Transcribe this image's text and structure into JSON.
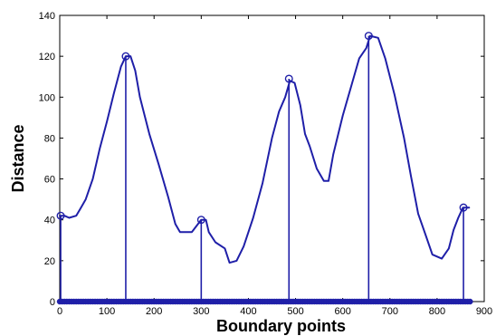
{
  "chart_data": {
    "type": "line",
    "title": "",
    "xlabel": "Boundary points",
    "ylabel": "Distance",
    "xlim": [
      0,
      900
    ],
    "ylim": [
      0,
      140
    ],
    "x_ticks": [
      "0",
      "100",
      "200",
      "300",
      "400",
      "500",
      "600",
      "700",
      "800",
      "900"
    ],
    "y_ticks": [
      "0",
      "20",
      "40",
      "60",
      "80",
      "100",
      "120",
      "140"
    ],
    "grid": false,
    "legend": "none",
    "colors": {
      "line": "#1f1fa8",
      "axes": "#000000",
      "background": "#ffffff"
    },
    "series": [
      {
        "points": [
          [
            0,
            42
          ],
          [
            10,
            42
          ],
          [
            20,
            41
          ],
          [
            35,
            42
          ],
          [
            45,
            46
          ],
          [
            55,
            50
          ],
          [
            70,
            60
          ],
          [
            85,
            75
          ],
          [
            100,
            88
          ],
          [
            115,
            102
          ],
          [
            130,
            115
          ],
          [
            140,
            120
          ],
          [
            150,
            120
          ],
          [
            160,
            113
          ],
          [
            170,
            100
          ],
          [
            190,
            82
          ],
          [
            210,
            67
          ],
          [
            230,
            51
          ],
          [
            245,
            38
          ],
          [
            255,
            34
          ],
          [
            270,
            34
          ],
          [
            280,
            34
          ],
          [
            290,
            37
          ],
          [
            300,
            40
          ],
          [
            310,
            40
          ],
          [
            316,
            34
          ],
          [
            330,
            29
          ],
          [
            350,
            26
          ],
          [
            360,
            19
          ],
          [
            375,
            20
          ],
          [
            390,
            27
          ],
          [
            410,
            41
          ],
          [
            430,
            58
          ],
          [
            450,
            80
          ],
          [
            465,
            93
          ],
          [
            478,
            100
          ],
          [
            488,
            108
          ],
          [
            498,
            107
          ],
          [
            510,
            96
          ],
          [
            520,
            82
          ],
          [
            530,
            76
          ],
          [
            545,
            65
          ],
          [
            560,
            59
          ],
          [
            570,
            59
          ],
          [
            580,
            72
          ],
          [
            600,
            91
          ],
          [
            620,
            107
          ],
          [
            635,
            119
          ],
          [
            650,
            124
          ],
          [
            658,
            130
          ],
          [
            675,
            129
          ],
          [
            690,
            119
          ],
          [
            710,
            101
          ],
          [
            730,
            80
          ],
          [
            745,
            61
          ],
          [
            760,
            43
          ],
          [
            775,
            33
          ],
          [
            790,
            23
          ],
          [
            810,
            21
          ],
          [
            825,
            26
          ],
          [
            835,
            35
          ],
          [
            845,
            41
          ],
          [
            855,
            46
          ],
          [
            868,
            46
          ]
        ]
      }
    ],
    "peaks": [
      {
        "x": 2,
        "y": 42
      },
      {
        "x": 140,
        "y": 120
      },
      {
        "x": 300,
        "y": 40
      },
      {
        "x": 486,
        "y": 109
      },
      {
        "x": 655,
        "y": 130
      },
      {
        "x": 856,
        "y": 46
      }
    ],
    "baseline_markers": {
      "y": 0,
      "x_start": 0,
      "x_end": 870,
      "step": 5
    }
  }
}
